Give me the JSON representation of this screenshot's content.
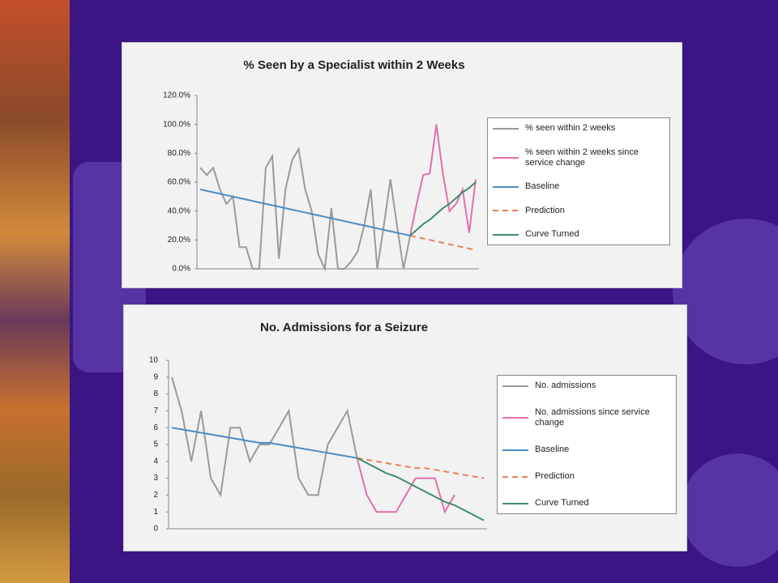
{
  "chart_data": [
    {
      "type": "line",
      "title": "% Seen by a Specialist within 2 Weeks",
      "ylim": [
        0,
        120
      ],
      "yticks": [
        {
          "value": 0,
          "label": "0.0%"
        },
        {
          "value": 20,
          "label": "20.0%"
        },
        {
          "value": 40,
          "label": "40.0%"
        },
        {
          "value": 60,
          "label": "60.0%"
        },
        {
          "value": 80,
          "label": "80.0%"
        },
        {
          "value": 100,
          "label": "100.0%"
        },
        {
          "value": 120,
          "label": "120.0%"
        }
      ],
      "grid": false,
      "series": [
        {
          "name": "% seen within 2 weeks",
          "color": "#9a9a9a",
          "dash": false,
          "values": [
            70,
            65,
            70,
            55,
            45,
            50,
            15,
            15,
            0,
            0,
            70,
            78,
            7,
            55,
            75,
            83,
            55,
            40,
            10,
            0,
            42,
            0,
            0,
            5,
            12,
            30,
            55,
            0,
            30,
            62,
            30,
            0,
            23,
            null,
            null,
            null,
            null,
            null,
            null,
            null,
            null,
            null,
            null
          ]
        },
        {
          "name": "% seen within 2 weeks since service change",
          "color": "#e46fae",
          "dash": false,
          "values": [
            null,
            null,
            null,
            null,
            null,
            null,
            null,
            null,
            null,
            null,
            null,
            null,
            null,
            null,
            null,
            null,
            null,
            null,
            null,
            null,
            null,
            null,
            null,
            null,
            null,
            null,
            null,
            null,
            null,
            null,
            null,
            null,
            23,
            45,
            65,
            66,
            100,
            66,
            40,
            45,
            55,
            25,
            62
          ]
        },
        {
          "name": "Baseline",
          "color": "#4a8cc4",
          "dash": false,
          "values": [
            55,
            54,
            53,
            52,
            51,
            50,
            49,
            48,
            47,
            46,
            45,
            44,
            43,
            42,
            41,
            40,
            39,
            38,
            37,
            36,
            35,
            34,
            33,
            32,
            31,
            30,
            29,
            28,
            27,
            26,
            25,
            24,
            23,
            null,
            null,
            null,
            null,
            null,
            null,
            null,
            null,
            null,
            null
          ]
        },
        {
          "name": "Prediction",
          "color": "#e8825a",
          "dash": true,
          "values": [
            null,
            null,
            null,
            null,
            null,
            null,
            null,
            null,
            null,
            null,
            null,
            null,
            null,
            null,
            null,
            null,
            null,
            null,
            null,
            null,
            null,
            null,
            null,
            null,
            null,
            null,
            null,
            null,
            null,
            null,
            null,
            null,
            23,
            22,
            21,
            20,
            19,
            18,
            17,
            16,
            15,
            14,
            13
          ]
        },
        {
          "name": "Curve Turned",
          "color": "#3e8c6c",
          "dash": false,
          "values": [
            null,
            null,
            null,
            null,
            null,
            null,
            null,
            null,
            null,
            null,
            null,
            null,
            null,
            null,
            null,
            null,
            null,
            null,
            null,
            null,
            null,
            null,
            null,
            null,
            null,
            null,
            null,
            null,
            null,
            null,
            null,
            null,
            23,
            27,
            31,
            34,
            38,
            42,
            45,
            49,
            53,
            56,
            60
          ]
        }
      ]
    },
    {
      "type": "line",
      "title": "No. Admissions for a Seizure",
      "ylim": [
        0,
        10
      ],
      "yticks": [
        0,
        1,
        2,
        3,
        4,
        5,
        6,
        7,
        8,
        9,
        10
      ],
      "grid": false,
      "series": [
        {
          "name": "No. admissions",
          "color": "#9a9a9a",
          "dash": false,
          "values": [
            9,
            7,
            4,
            7,
            3,
            2,
            6,
            6,
            4,
            5,
            5,
            6,
            7,
            3,
            2,
            2,
            5,
            6,
            7,
            4.2,
            null,
            null,
            null,
            null,
            null,
            null,
            null,
            null,
            null,
            null,
            null,
            null,
            null
          ]
        },
        {
          "name": "No. admissions since service change",
          "color": "#e46fae",
          "dash": false,
          "values": [
            null,
            null,
            null,
            null,
            null,
            null,
            null,
            null,
            null,
            null,
            null,
            null,
            null,
            null,
            null,
            null,
            null,
            null,
            null,
            4.2,
            2,
            1,
            1,
            1,
            2,
            3,
            3,
            3,
            1,
            2,
            null,
            null,
            null
          ]
        },
        {
          "name": "Baseline",
          "color": "#4a8cc4",
          "dash": false,
          "values": [
            6,
            5.9,
            5.8,
            5.7,
            5.6,
            5.5,
            5.4,
            5.3,
            5.2,
            5.1,
            5.1,
            5,
            4.9,
            4.8,
            4.7,
            4.6,
            4.5,
            4.4,
            4.3,
            4.2,
            null,
            null,
            null,
            null,
            null,
            null,
            null,
            null,
            null,
            null,
            null,
            null,
            null
          ]
        },
        {
          "name": "Prediction",
          "color": "#e8825a",
          "dash": true,
          "values": [
            null,
            null,
            null,
            null,
            null,
            null,
            null,
            null,
            null,
            null,
            null,
            null,
            null,
            null,
            null,
            null,
            null,
            null,
            null,
            4.2,
            4.1,
            4,
            3.9,
            3.8,
            3.7,
            3.6,
            3.6,
            3.5,
            3.4,
            3.3,
            3.2,
            3.1,
            3
          ]
        },
        {
          "name": "Curve Turned",
          "color": "#3e8c6c",
          "dash": false,
          "values": [
            null,
            null,
            null,
            null,
            null,
            null,
            null,
            null,
            null,
            null,
            null,
            null,
            null,
            null,
            null,
            null,
            null,
            null,
            null,
            4.2,
            3.9,
            3.6,
            3.3,
            3.1,
            2.8,
            2.5,
            2.2,
            1.9,
            1.6,
            1.4,
            1.1,
            0.8,
            0.5
          ]
        }
      ]
    }
  ]
}
